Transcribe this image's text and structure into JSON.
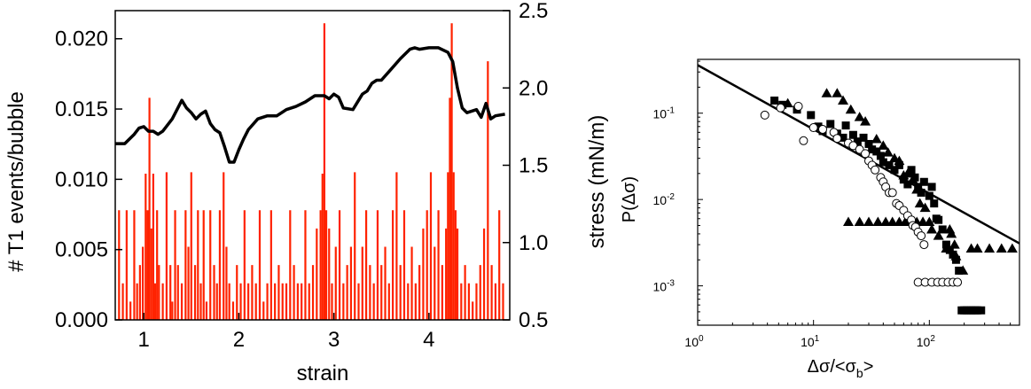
{
  "chart_data": [
    {
      "type": "bar",
      "xlabel": "strain",
      "ylabel": "# T1 events/bubble",
      "y2label": "stress (mN/m)",
      "xlim": [
        0.7,
        4.85
      ],
      "ylim": [
        0,
        0.022
      ],
      "y2lim": [
        0.5,
        2.5
      ],
      "xticks": [
        {
          "value": 1,
          "label": "1"
        },
        {
          "value": 2,
          "label": "2"
        },
        {
          "value": 3,
          "label": "3"
        },
        {
          "value": 4,
          "label": "4"
        }
      ],
      "yticks": [
        {
          "value": 0.0,
          "label": "0.000"
        },
        {
          "value": 0.005,
          "label": "0.005"
        },
        {
          "value": 0.01,
          "label": "0.010"
        },
        {
          "value": 0.015,
          "label": "0.015"
        },
        {
          "value": 0.02,
          "label": "0.020"
        }
      ],
      "y2ticks": [
        {
          "value": 0.5,
          "label": "0.5"
        },
        {
          "value": 1.0,
          "label": "1.0"
        },
        {
          "value": 1.5,
          "label": "1.5"
        },
        {
          "value": 2.0,
          "label": "2.0"
        },
        {
          "value": 2.5,
          "label": "2.5"
        }
      ],
      "grid": false,
      "colors": {
        "t1_events": "#ff2200",
        "stress": "#000000"
      },
      "t1_events": {
        "axis": "left",
        "x": [
          0.74,
          0.78,
          0.82,
          0.86,
          0.9,
          0.93,
          0.96,
          0.99,
          1.02,
          1.04,
          1.06,
          1.08,
          1.1,
          1.12,
          1.14,
          1.16,
          1.2,
          1.24,
          1.28,
          1.3,
          1.33,
          1.36,
          1.4,
          1.44,
          1.47,
          1.5,
          1.54,
          1.57,
          1.6,
          1.63,
          1.66,
          1.7,
          1.74,
          1.77,
          1.8,
          1.84,
          1.87,
          1.9,
          1.94,
          1.98,
          2.02,
          2.06,
          2.1,
          2.14,
          2.18,
          2.22,
          2.26,
          2.3,
          2.34,
          2.38,
          2.42,
          2.46,
          2.5,
          2.54,
          2.58,
          2.62,
          2.66,
          2.7,
          2.74,
          2.78,
          2.82,
          2.86,
          2.88,
          2.9,
          2.92,
          2.95,
          2.98,
          3.02,
          3.06,
          3.1,
          3.14,
          3.18,
          3.22,
          3.26,
          3.3,
          3.34,
          3.38,
          3.42,
          3.46,
          3.5,
          3.54,
          3.58,
          3.62,
          3.66,
          3.7,
          3.74,
          3.78,
          3.82,
          3.86,
          3.9,
          3.94,
          3.98,
          4.02,
          4.06,
          4.1,
          4.14,
          4.18,
          4.2,
          4.22,
          4.24,
          4.26,
          4.28,
          4.3,
          4.34,
          4.38,
          4.42,
          4.46,
          4.5,
          4.54,
          4.58,
          4.62,
          4.66,
          4.7,
          4.74,
          4.78
        ],
        "values": [
          0.0078,
          0.0026,
          0.0078,
          0.0013,
          0.0078,
          0.0026,
          0.0039,
          0.0052,
          0.0104,
          0.0078,
          0.0158,
          0.0065,
          0.0104,
          0.0026,
          0.0078,
          0.0039,
          0.0026,
          0.0105,
          0.0039,
          0.0013,
          0.0078,
          0.0039,
          0.0026,
          0.0078,
          0.0052,
          0.0105,
          0.0039,
          0.0078,
          0.0026,
          0.0078,
          0.0013,
          0.0078,
          0.0039,
          0.0026,
          0.0078,
          0.0105,
          0.0052,
          0.0026,
          0.0013,
          0.0039,
          0.0026,
          0.0078,
          0.0026,
          0.0039,
          0.0026,
          0.0078,
          0.0013,
          0.0026,
          0.0078,
          0.0026,
          0.0039,
          0.0026,
          0.0026,
          0.0078,
          0.0039,
          0.0026,
          0.0026,
          0.0078,
          0.0026,
          0.0039,
          0.0065,
          0.0078,
          0.0104,
          0.0211,
          0.0078,
          0.0065,
          0.0026,
          0.0052,
          0.0078,
          0.0026,
          0.0039,
          0.0052,
          0.0105,
          0.0026,
          0.0052,
          0.0078,
          0.0039,
          0.0026,
          0.0078,
          0.0039,
          0.0052,
          0.0026,
          0.0078,
          0.0105,
          0.0039,
          0.0078,
          0.0026,
          0.0052,
          0.0026,
          0.0039,
          0.0065,
          0.0078,
          0.0105,
          0.0052,
          0.0078,
          0.0039,
          0.0065,
          0.0105,
          0.0158,
          0.0211,
          0.0105,
          0.0078,
          0.0065,
          0.0026,
          0.0039,
          0.0026,
          0.0013,
          0.0026,
          0.0039,
          0.0065,
          0.0184,
          0.0039,
          0.0026,
          0.0078,
          0.0026
        ]
      },
      "stress": {
        "axis": "right",
        "x": [
          0.7,
          0.8,
          0.9,
          0.95,
          1.0,
          1.05,
          1.1,
          1.15,
          1.2,
          1.3,
          1.35,
          1.4,
          1.45,
          1.5,
          1.55,
          1.6,
          1.65,
          1.7,
          1.75,
          1.8,
          1.85,
          1.9,
          1.95,
          2.0,
          2.05,
          2.1,
          2.2,
          2.3,
          2.4,
          2.5,
          2.6,
          2.7,
          2.8,
          2.9,
          2.95,
          3.0,
          3.05,
          3.1,
          3.2,
          3.3,
          3.35,
          3.4,
          3.45,
          3.5,
          3.6,
          3.7,
          3.8,
          3.85,
          3.9,
          4.0,
          4.1,
          4.2,
          4.25,
          4.3,
          4.35,
          4.4,
          4.5,
          4.55,
          4.6,
          4.65,
          4.7,
          4.8
        ],
        "values": [
          1.64,
          1.64,
          1.7,
          1.74,
          1.75,
          1.72,
          1.72,
          1.7,
          1.72,
          1.8,
          1.86,
          1.92,
          1.87,
          1.84,
          1.8,
          1.83,
          1.85,
          1.77,
          1.73,
          1.71,
          1.62,
          1.52,
          1.52,
          1.6,
          1.67,
          1.73,
          1.8,
          1.82,
          1.82,
          1.86,
          1.88,
          1.91,
          1.95,
          1.95,
          1.93,
          1.96,
          1.94,
          1.87,
          1.86,
          1.96,
          1.98,
          2.03,
          2.05,
          2.05,
          2.12,
          2.19,
          2.25,
          2.26,
          2.25,
          2.26,
          2.26,
          2.23,
          2.17,
          2.0,
          1.87,
          1.84,
          1.86,
          1.81,
          1.9,
          1.8,
          1.82,
          1.83
        ]
      }
    },
    {
      "type": "scatter",
      "xlabel": "Δσ/<σ",
      "xlabel_sub": "b",
      "xlabel_end": ">",
      "ylabel": "P(Δσ)",
      "xscale": "log",
      "yscale": "log",
      "xlim": [
        1,
        600
      ],
      "ylim": [
        0.00035,
        0.42
      ],
      "xticks": [
        {
          "value": 1,
          "base": "10",
          "exp": "0"
        },
        {
          "value": 10,
          "base": "10",
          "exp": "1"
        },
        {
          "value": 100,
          "base": "10",
          "exp": "2"
        }
      ],
      "yticks": [
        {
          "value": 0.001,
          "base": "10",
          "exp": "-3"
        },
        {
          "value": 0.01,
          "base": "10",
          "exp": "-2"
        },
        {
          "value": 0.1,
          "base": "10",
          "exp": "-1"
        }
      ],
      "grid": false,
      "fit_line": {
        "x": [
          1,
          600
        ],
        "y": [
          0.36,
          0.0031
        ]
      },
      "series": [
        {
          "marker": "square",
          "points": [
            [
              4.6,
              0.14
            ],
            [
              5.4,
              0.125
            ],
            [
              7.2,
              0.11
            ],
            [
              9.5,
              0.095
            ],
            [
              11,
              0.07
            ],
            [
              12,
              0.062
            ],
            [
              14,
              0.075
            ],
            [
              16,
              0.058
            ],
            [
              18,
              0.052
            ],
            [
              19,
              0.072
            ],
            [
              22,
              0.056
            ],
            [
              24,
              0.047
            ],
            [
              27,
              0.052
            ],
            [
              30,
              0.044
            ],
            [
              32,
              0.038
            ],
            [
              35,
              0.036
            ],
            [
              38,
              0.032
            ],
            [
              40,
              0.027
            ],
            [
              45,
              0.025
            ],
            [
              50,
              0.022
            ],
            [
              55,
              0.025
            ],
            [
              60,
              0.017
            ],
            [
              65,
              0.015
            ],
            [
              70,
              0.022
            ],
            [
              75,
              0.018
            ],
            [
              80,
              0.014
            ],
            [
              85,
              0.012
            ],
            [
              90,
              0.016
            ],
            [
              100,
              0.011
            ],
            [
              105,
              0.014
            ],
            [
              110,
              0.009
            ],
            [
              115,
              0.006
            ],
            [
              120,
              0.0058
            ],
            [
              130,
              0.0045
            ],
            [
              140,
              0.003
            ],
            [
              150,
              0.0026
            ],
            [
              160,
              0.0023
            ],
            [
              170,
              0.002
            ],
            [
              180,
              0.0015
            ],
            [
              190,
              0.00052
            ],
            [
              200,
              0.00052
            ],
            [
              210,
              0.00052
            ],
            [
              220,
              0.00052
            ],
            [
              230,
              0.00052
            ],
            [
              240,
              0.00052
            ],
            [
              250,
              0.00052
            ],
            [
              260,
              0.00052
            ],
            [
              280,
              0.00052
            ]
          ]
        },
        {
          "marker": "triangle",
          "points": [
            [
              6,
              0.13
            ],
            [
              13,
              0.17
            ],
            [
              16,
              0.17
            ],
            [
              18,
              0.14
            ],
            [
              21,
              0.11
            ],
            [
              25,
              0.09
            ],
            [
              28,
              0.08
            ],
            [
              35,
              0.05
            ],
            [
              40,
              0.042
            ],
            [
              44,
              0.035
            ],
            [
              50,
              0.03
            ],
            [
              55,
              0.028
            ],
            [
              60,
              0.019
            ],
            [
              65,
              0.02
            ],
            [
              72,
              0.017
            ],
            [
              78,
              0.013
            ],
            [
              83,
              0.009
            ],
            [
              88,
              0.0055
            ],
            [
              92,
              0.008
            ],
            [
              100,
              0.0055
            ],
            [
              105,
              0.0045
            ],
            [
              120,
              0.0038
            ],
            [
              140,
              0.0027
            ],
            [
              150,
              0.0045
            ],
            [
              155,
              0.004
            ],
            [
              165,
              0.003
            ],
            [
              170,
              0.0022
            ],
            [
              20,
              0.0055
            ],
            [
              25,
              0.0055
            ],
            [
              30,
              0.0055
            ],
            [
              36,
              0.0055
            ],
            [
              42,
              0.0055
            ],
            [
              48,
              0.0055
            ],
            [
              55,
              0.0055
            ],
            [
              62,
              0.0055
            ],
            [
              70,
              0.0055
            ],
            [
              78,
              0.0055
            ],
            [
              88,
              0.0055
            ],
            [
              195,
              0.0015
            ],
            [
              230,
              0.0027
            ],
            [
              260,
              0.0027
            ],
            [
              330,
              0.0027
            ],
            [
              420,
              0.0027
            ],
            [
              520,
              0.0027
            ]
          ]
        },
        {
          "marker": "circle",
          "points": [
            [
              3.8,
              0.095
            ],
            [
              5.2,
              0.115
            ],
            [
              7.4,
              0.12
            ],
            [
              8.2,
              0.048
            ],
            [
              10,
              0.068
            ],
            [
              12,
              0.065
            ],
            [
              15,
              0.06
            ],
            [
              16,
              0.051
            ],
            [
              20,
              0.045
            ],
            [
              22,
              0.042
            ],
            [
              25,
              0.038
            ],
            [
              28,
              0.034
            ],
            [
              30,
              0.028
            ],
            [
              32,
              0.025
            ],
            [
              34,
              0.022
            ],
            [
              38,
              0.018
            ],
            [
              40,
              0.016
            ],
            [
              42,
              0.014
            ],
            [
              45,
              0.012
            ],
            [
              48,
              0.012
            ],
            [
              52,
              0.009
            ],
            [
              55,
              0.0085
            ],
            [
              60,
              0.0075
            ],
            [
              65,
              0.0065
            ],
            [
              70,
              0.0058
            ],
            [
              72,
              0.005
            ],
            [
              76,
              0.0048
            ],
            [
              80,
              0.0042
            ],
            [
              85,
              0.0038
            ],
            [
              90,
              0.003
            ],
            [
              80,
              0.0011
            ],
            [
              92,
              0.0011
            ],
            [
              105,
              0.0011
            ],
            [
              118,
              0.0011
            ],
            [
              130,
              0.0011
            ],
            [
              145,
              0.0011
            ],
            [
              160,
              0.0011
            ],
            [
              175,
              0.0011
            ]
          ]
        }
      ]
    }
  ]
}
